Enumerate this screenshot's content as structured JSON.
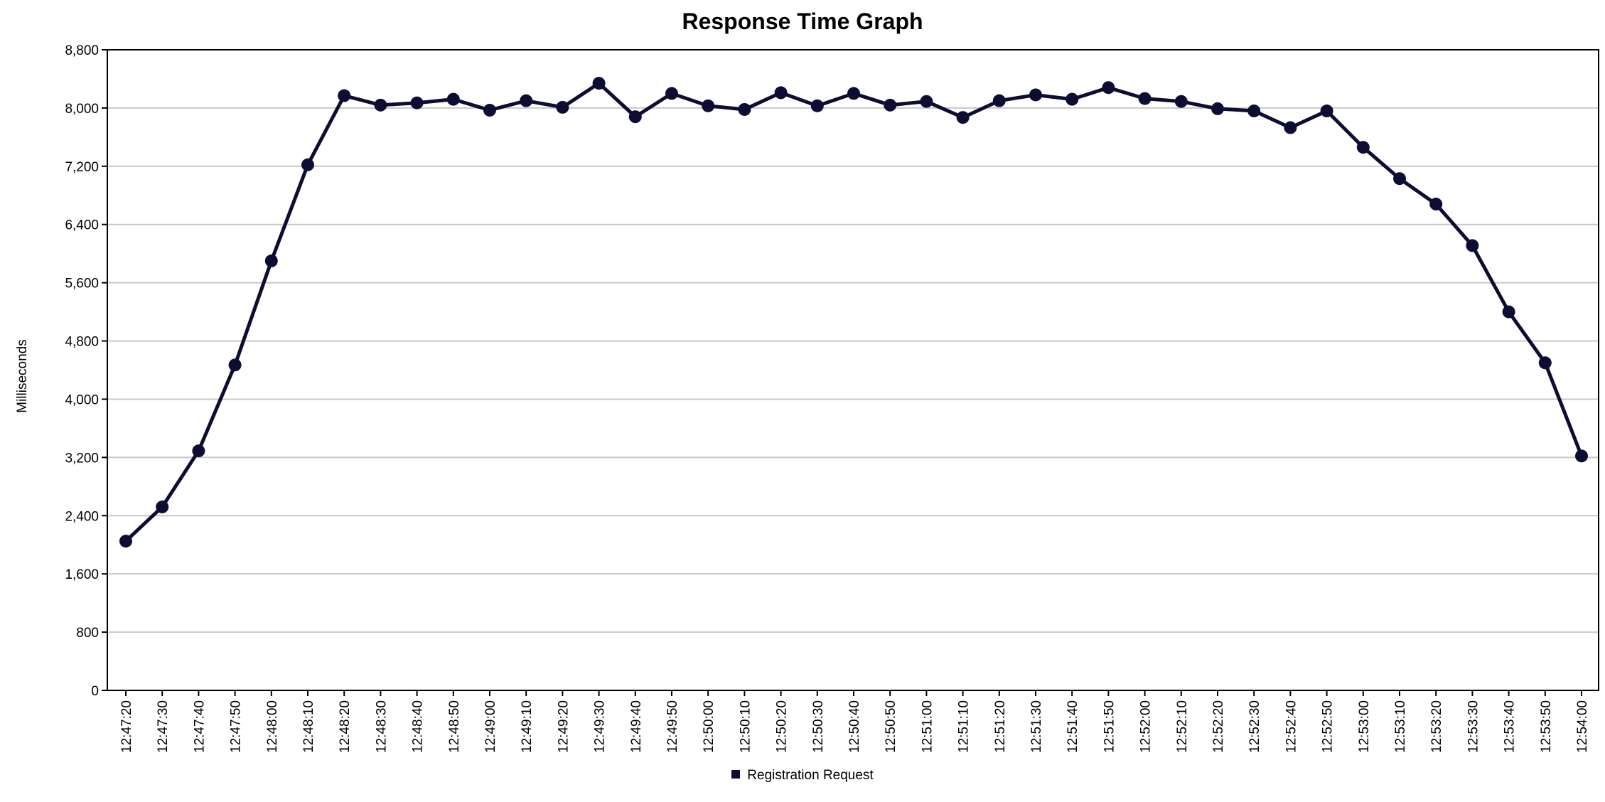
{
  "chart_data": {
    "type": "line",
    "title": "Response Time Graph",
    "xlabel": "",
    "ylabel": "Milliseconds",
    "ylim": [
      0,
      8800
    ],
    "yticks": [
      0,
      800,
      1600,
      2400,
      3200,
      4000,
      4800,
      5600,
      6400,
      7200,
      8000,
      8800
    ],
    "ytick_labels": [
      "0",
      "800",
      "1,600",
      "2,400",
      "3,200",
      "4,000",
      "4,800",
      "5,600",
      "6,400",
      "7,200",
      "8,000",
      "8,800"
    ],
    "grid": "horizontal",
    "legend": "bottom-center",
    "x": [
      "12:47:20",
      "12:47:30",
      "12:47:40",
      "12:47:50",
      "12:48:00",
      "12:48:10",
      "12:48:20",
      "12:48:30",
      "12:48:40",
      "12:48:50",
      "12:49:00",
      "12:49:10",
      "12:49:20",
      "12:49:30",
      "12:49:40",
      "12:49:50",
      "12:50:00",
      "12:50:10",
      "12:50:20",
      "12:50:30",
      "12:50:40",
      "12:50:50",
      "12:51:00",
      "12:51:10",
      "12:51:20",
      "12:51:30",
      "12:51:40",
      "12:51:50",
      "12:52:00",
      "12:52:10",
      "12:52:20",
      "12:52:30",
      "12:52:40",
      "12:52:50",
      "12:53:00",
      "12:53:10",
      "12:53:20",
      "12:53:30",
      "12:53:40",
      "12:53:50",
      "12:54:00"
    ],
    "series": [
      {
        "name": "Registration Request",
        "color": "#0d0d33",
        "values": [
          2050,
          2520,
          3290,
          4470,
          5900,
          7220,
          8170,
          8040,
          8070,
          8120,
          7970,
          8100,
          8010,
          8340,
          7880,
          8200,
          8030,
          7980,
          8210,
          8030,
          8200,
          8040,
          8090,
          7870,
          8100,
          8180,
          8120,
          8280,
          8130,
          8090,
          7990,
          7960,
          7730,
          7960,
          7460,
          7030,
          6680,
          6110,
          5200,
          4500,
          3220
        ]
      }
    ]
  }
}
